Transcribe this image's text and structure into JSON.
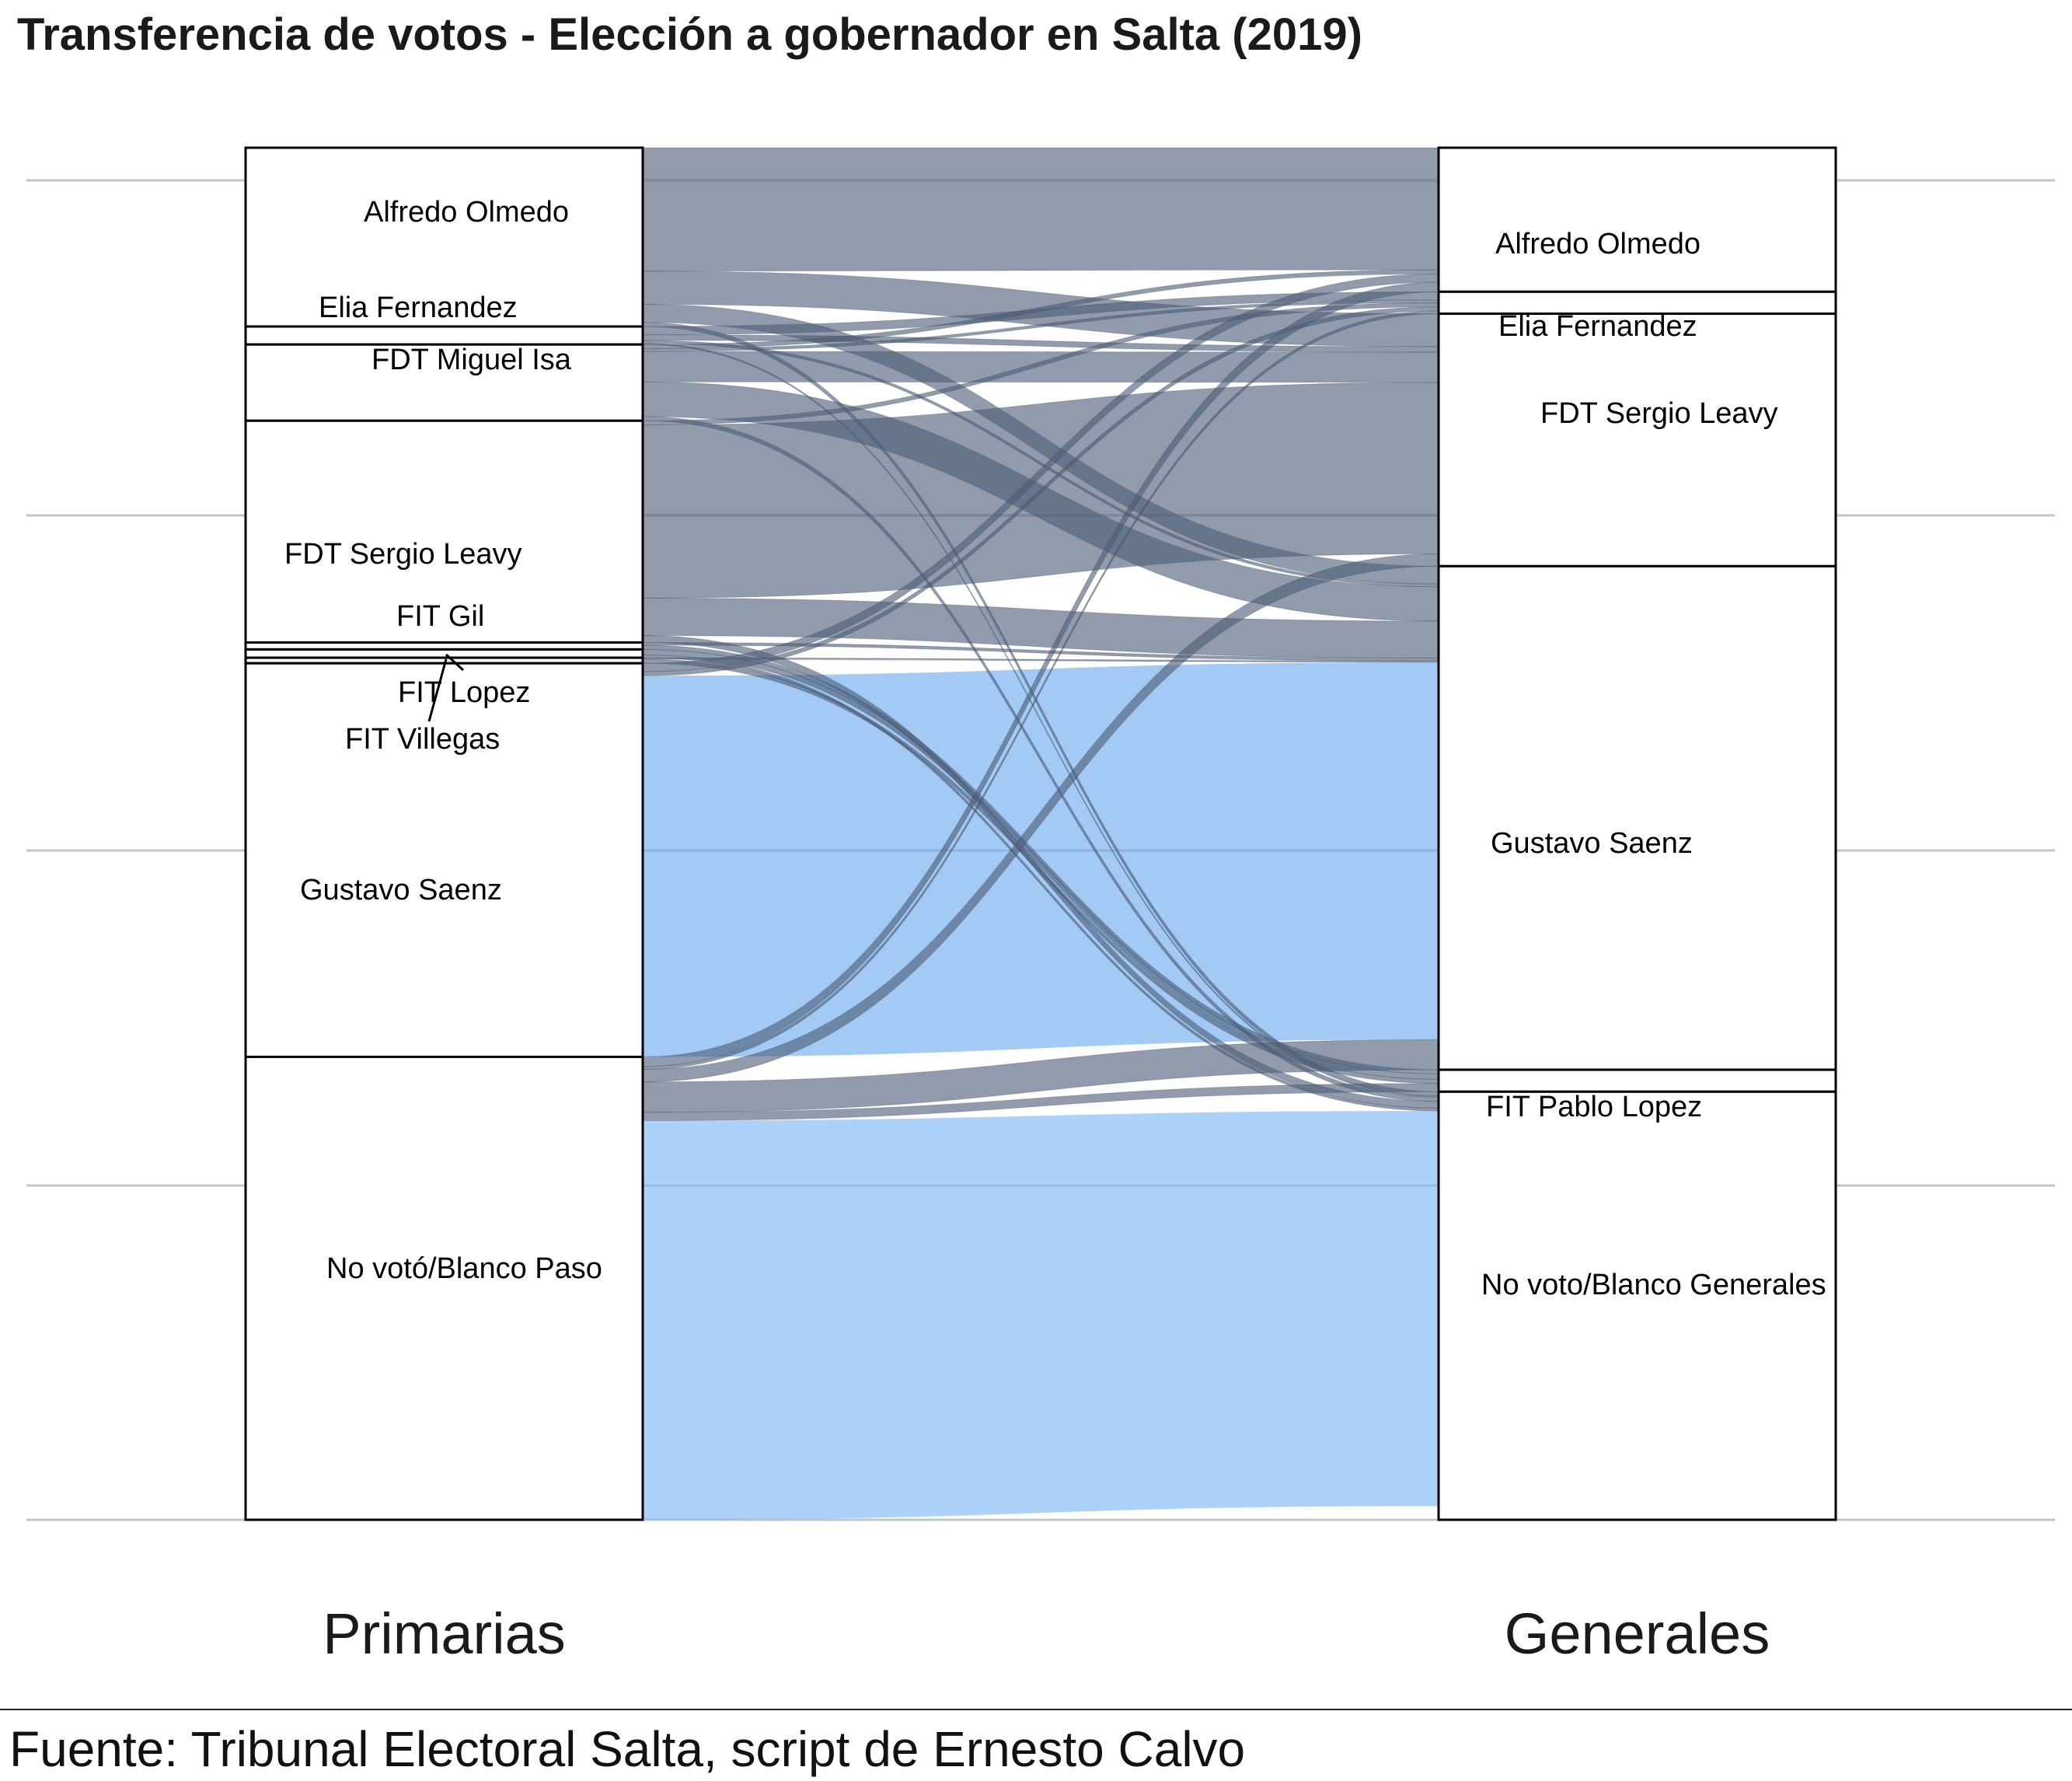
{
  "title": "Transferencia de votos - Elección a gobernador en Salta (2019)",
  "caption": "Fuente: Tribunal Electoral Salta, script de Ernesto Calvo",
  "chart_data": {
    "type": "alluvial",
    "axes": [
      "Primarias",
      "Generales"
    ],
    "grid": true,
    "colors": {
      "dark_flow": "#4d5e78",
      "blue_flow": "#6ba9ee",
      "light_blue_flow": "#79b6f6",
      "node_border": "#000000",
      "grid": "#c4c4c4"
    },
    "left_nodes": [
      {
        "label": "Alfredo Olmedo",
        "share": 12.9
      },
      {
        "label": "Elia Fernandez",
        "share": 1.3
      },
      {
        "label": "FDT Miguel Isa",
        "share": 5.5
      },
      {
        "label": "FDT Sergio Leavy",
        "share": 16.0
      },
      {
        "label": "FIT Gil",
        "share": 0.5
      },
      {
        "label": "FIT Lopez",
        "share": 0.6
      },
      {
        "label": "FIT Villegas",
        "share": 0.4
      },
      {
        "label": "Gustavo Saenz",
        "share": 28.4
      },
      {
        "label": "No votó/Blanco Paso",
        "share": 33.4
      }
    ],
    "right_nodes": [
      {
        "label": "Alfredo Olmedo",
        "share": 10.5
      },
      {
        "label": "Elia Fernandez",
        "share": 1.6
      },
      {
        "label": "FDT Sergio Leavy",
        "share": 18.4
      },
      {
        "label": "Gustavo Saenz",
        "share": 36.7
      },
      {
        "label": "FIT Pablo Lopez",
        "share": 1.6
      },
      {
        "label": "No voto/Blanco Generales",
        "share": 31.2
      }
    ],
    "flows": [
      {
        "from": "Alfredo Olmedo",
        "to": "Alfredo Olmedo",
        "value": 8.9,
        "color": "dark"
      },
      {
        "from": "Alfredo Olmedo",
        "to": "FDT Sergio Leavy",
        "value": 2.4,
        "color": "dark"
      },
      {
        "from": "Alfredo Olmedo",
        "to": "Gustavo Saenz",
        "value": 1.3,
        "color": "dark"
      },
      {
        "from": "Alfredo Olmedo",
        "to": "No voto/Blanco Generales",
        "value": 0.3,
        "color": "dark"
      },
      {
        "from": "Elia Fernandez",
        "to": "Elia Fernandez",
        "value": 0.6,
        "color": "dark"
      },
      {
        "from": "Elia Fernandez",
        "to": "FDT Sergio Leavy",
        "value": 0.4,
        "color": "dark"
      },
      {
        "from": "Elia Fernandez",
        "to": "Gustavo Saenz",
        "value": 0.2,
        "color": "dark"
      },
      {
        "from": "Elia Fernandez",
        "to": "No voto/Blanco Generales",
        "value": 0.1,
        "color": "dark"
      },
      {
        "from": "FDT Miguel Isa",
        "to": "Alfredo Olmedo",
        "value": 0.3,
        "color": "dark"
      },
      {
        "from": "FDT Miguel Isa",
        "to": "Elia Fernandez",
        "value": 0.2,
        "color": "dark"
      },
      {
        "from": "FDT Miguel Isa",
        "to": "FDT Sergio Leavy",
        "value": 2.2,
        "color": "dark"
      },
      {
        "from": "FDT Miguel Isa",
        "to": "Gustavo Saenz",
        "value": 2.5,
        "color": "dark"
      },
      {
        "from": "FDT Miguel Isa",
        "to": "No voto/Blanco Generales",
        "value": 0.3,
        "color": "dark"
      },
      {
        "from": "FDT Sergio Leavy",
        "to": "FDT Sergio Leavy",
        "value": 12.5,
        "color": "dark"
      },
      {
        "from": "FDT Sergio Leavy",
        "to": "Gustavo Saenz",
        "value": 2.7,
        "color": "dark"
      },
      {
        "from": "FDT Sergio Leavy",
        "to": "Elia Fernandez",
        "value": 0.3,
        "color": "dark"
      },
      {
        "from": "FDT Sergio Leavy",
        "to": "No voto/Blanco Generales",
        "value": 0.5,
        "color": "dark"
      },
      {
        "from": "FIT Gil",
        "to": "FIT Pablo Lopez",
        "value": 0.3,
        "color": "dark"
      },
      {
        "from": "FIT Gil",
        "to": "Gustavo Saenz",
        "value": 0.2,
        "color": "dark"
      },
      {
        "from": "FIT Lopez",
        "to": "FIT Pablo Lopez",
        "value": 0.4,
        "color": "dark"
      },
      {
        "from": "FIT Lopez",
        "to": "No voto/Blanco Generales",
        "value": 0.2,
        "color": "dark"
      },
      {
        "from": "FIT Villegas",
        "to": "FIT Pablo Lopez",
        "value": 0.3,
        "color": "dark"
      },
      {
        "from": "FIT Villegas",
        "to": "Gustavo Saenz",
        "value": 0.1,
        "color": "dark"
      },
      {
        "from": "Gustavo Saenz",
        "to": "Gustavo Saenz",
        "value": 27.5,
        "color": "blue"
      },
      {
        "from": "Gustavo Saenz",
        "to": "Alfredo Olmedo",
        "value": 0.6,
        "color": "dark"
      },
      {
        "from": "Gustavo Saenz",
        "to": "Elia Fernandez",
        "value": 0.3,
        "color": "dark"
      },
      {
        "from": "No votó/Blanco Paso",
        "to": "Gustavo Saenz",
        "value": 2.2,
        "color": "dark"
      },
      {
        "from": "No votó/Blanco Paso",
        "to": "FIT Pablo Lopez",
        "value": 0.6,
        "color": "dark"
      },
      {
        "from": "No votó/Blanco Paso",
        "to": "Alfredo Olmedo",
        "value": 0.7,
        "color": "dark"
      },
      {
        "from": "No votó/Blanco Paso",
        "to": "Elia Fernandez",
        "value": 0.2,
        "color": "dark"
      },
      {
        "from": "No votó/Blanco Paso",
        "to": "FDT Sergio Leavy",
        "value": 0.9,
        "color": "dark"
      },
      {
        "from": "No votó/Blanco Paso",
        "to": "No voto/Blanco Generales",
        "value": 28.8,
        "color": "light-blue"
      }
    ]
  }
}
